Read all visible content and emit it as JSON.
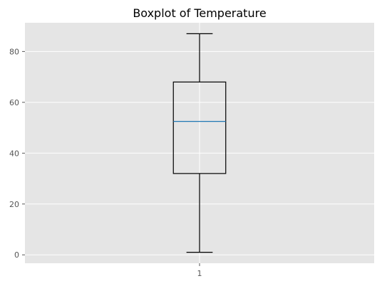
{
  "chart_data": {
    "type": "boxplot",
    "title": "Boxplot of Temperature",
    "xlabel": "",
    "ylabel": "",
    "categories": [
      "1"
    ],
    "boxes": [
      {
        "category": "1",
        "whisker_low": 1,
        "q1": 32,
        "median": 52.5,
        "q3": 68,
        "whisker_high": 87
      }
    ],
    "yticks": [
      0,
      20,
      40,
      60,
      80
    ],
    "ylim": [
      -3.3,
      91.3
    ],
    "xlim": [
      0.5,
      1.5
    ],
    "grid": true,
    "colors": {
      "background": "#e5e5e5",
      "grid": "#ffffff",
      "box": "#000000",
      "median": "#1f77b4"
    }
  }
}
